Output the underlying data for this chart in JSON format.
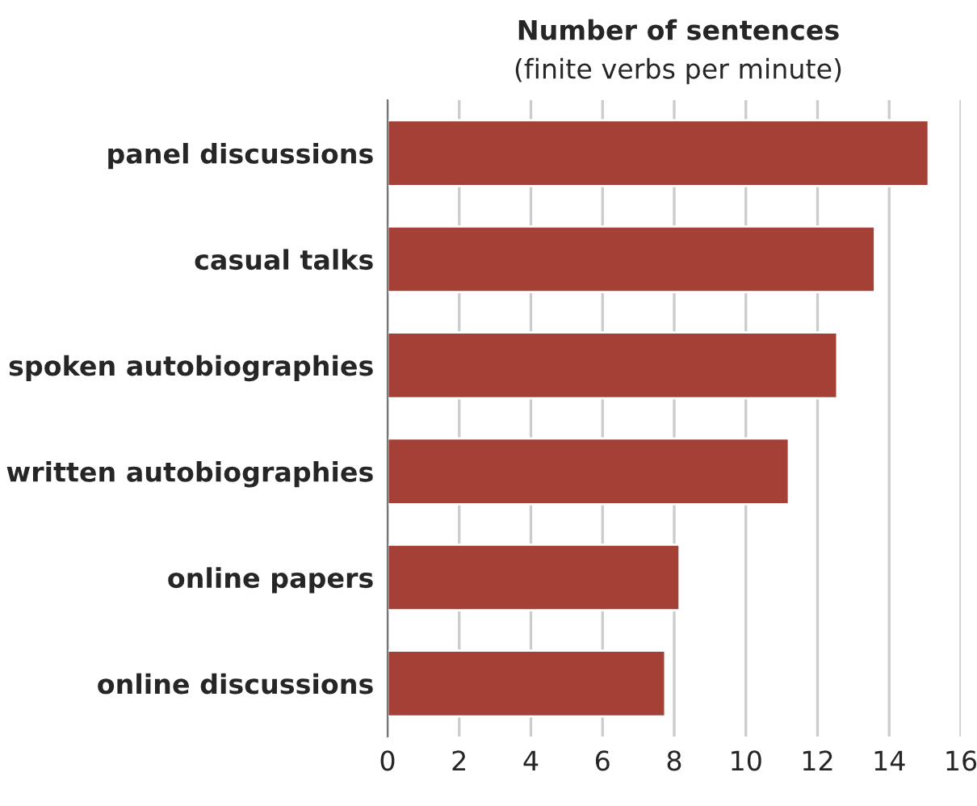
{
  "chart_data": {
    "type": "bar",
    "orientation": "horizontal",
    "title": "Number of sentences",
    "subtitle": "(finite verbs per minute)",
    "categories": [
      "panel discussions",
      "casual talks",
      "spoken autobiographies",
      "written autobiographies",
      "online papers",
      "online discussions"
    ],
    "values": [
      15.1,
      13.6,
      12.55,
      11.2,
      8.15,
      7.75
    ],
    "color": "#a54036",
    "xlim": [
      0,
      16
    ],
    "xticks": [
      0,
      2,
      4,
      6,
      8,
      10,
      12,
      14,
      16
    ],
    "grid": "x",
    "legend": false
  }
}
